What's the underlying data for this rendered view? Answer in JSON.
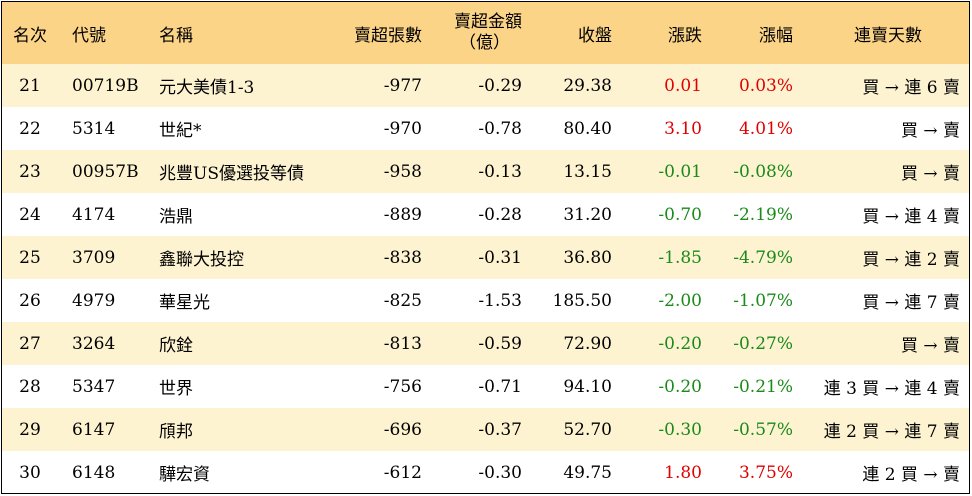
{
  "headers": {
    "rank": "名次",
    "code": "代號",
    "name": "名稱",
    "shares": "賣超張數",
    "amount_line1": "賣超金額",
    "amount_line2": "（億）",
    "close": "收盤",
    "chg": "漲跌",
    "pct": "漲幅",
    "status": "連賣天數"
  },
  "colors": {
    "header_bg": "#fbd487",
    "alt_row_bg": "#fdf3d1",
    "up": "#e00000",
    "down": "#1a8a1a"
  },
  "rows": [
    {
      "rank": "21",
      "code": "00719B",
      "name": "元大美債1-3",
      "shares": "-977",
      "amount": "-0.29",
      "close": "29.38",
      "chg": "0.01",
      "pct": "0.03%",
      "status": "買 → 連 6 賣",
      "dir": "up"
    },
    {
      "rank": "22",
      "code": "5314",
      "name": "世紀*",
      "shares": "-970",
      "amount": "-0.78",
      "close": "80.40",
      "chg": "3.10",
      "pct": "4.01%",
      "status": "買 → 賣",
      "dir": "up"
    },
    {
      "rank": "23",
      "code": "00957B",
      "name": "兆豐US優選投等債",
      "shares": "-958",
      "amount": "-0.13",
      "close": "13.15",
      "chg": "-0.01",
      "pct": "-0.08%",
      "status": "買 → 賣",
      "dir": "down"
    },
    {
      "rank": "24",
      "code": "4174",
      "name": "浩鼎",
      "shares": "-889",
      "amount": "-0.28",
      "close": "31.20",
      "chg": "-0.70",
      "pct": "-2.19%",
      "status": "買 → 連 4 賣",
      "dir": "down"
    },
    {
      "rank": "25",
      "code": "3709",
      "name": "鑫聯大投控",
      "shares": "-838",
      "amount": "-0.31",
      "close": "36.80",
      "chg": "-1.85",
      "pct": "-4.79%",
      "status": "買 → 連 2 賣",
      "dir": "down"
    },
    {
      "rank": "26",
      "code": "4979",
      "name": "華星光",
      "shares": "-825",
      "amount": "-1.53",
      "close": "185.50",
      "chg": "-2.00",
      "pct": "-1.07%",
      "status": "買 → 連 7 賣",
      "dir": "down"
    },
    {
      "rank": "27",
      "code": "3264",
      "name": "欣銓",
      "shares": "-813",
      "amount": "-0.59",
      "close": "72.90",
      "chg": "-0.20",
      "pct": "-0.27%",
      "status": "買 → 賣",
      "dir": "down"
    },
    {
      "rank": "28",
      "code": "5347",
      "name": "世界",
      "shares": "-756",
      "amount": "-0.71",
      "close": "94.10",
      "chg": "-0.20",
      "pct": "-0.21%",
      "status": "連 3 買 → 連 4 賣",
      "dir": "down"
    },
    {
      "rank": "29",
      "code": "6147",
      "name": "頎邦",
      "shares": "-696",
      "amount": "-0.37",
      "close": "52.70",
      "chg": "-0.30",
      "pct": "-0.57%",
      "status": "連 2 買 → 連 7 賣",
      "dir": "down"
    },
    {
      "rank": "30",
      "code": "6148",
      "name": "驊宏資",
      "shares": "-612",
      "amount": "-0.30",
      "close": "49.75",
      "chg": "1.80",
      "pct": "3.75%",
      "status": "連 2 買 → 賣",
      "dir": "up"
    }
  ]
}
